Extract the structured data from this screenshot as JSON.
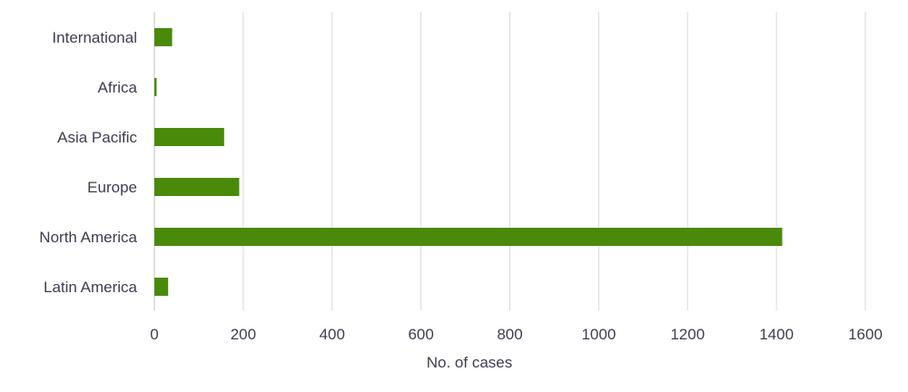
{
  "chart_data": {
    "type": "bar",
    "orientation": "horizontal",
    "categories": [
      "International",
      "Africa",
      "Asia Pacific",
      "Europe",
      "North America",
      "Latin America"
    ],
    "values": [
      40,
      5,
      157,
      191,
      1413,
      31
    ],
    "xlabel": "No. of cases",
    "ylabel": "",
    "xlim": [
      0,
      1600
    ],
    "xticks": [
      0,
      200,
      400,
      600,
      800,
      1000,
      1200,
      1400,
      1600
    ],
    "grid": "vertical",
    "legend": "none",
    "bar_color": "#4a8a0a"
  }
}
